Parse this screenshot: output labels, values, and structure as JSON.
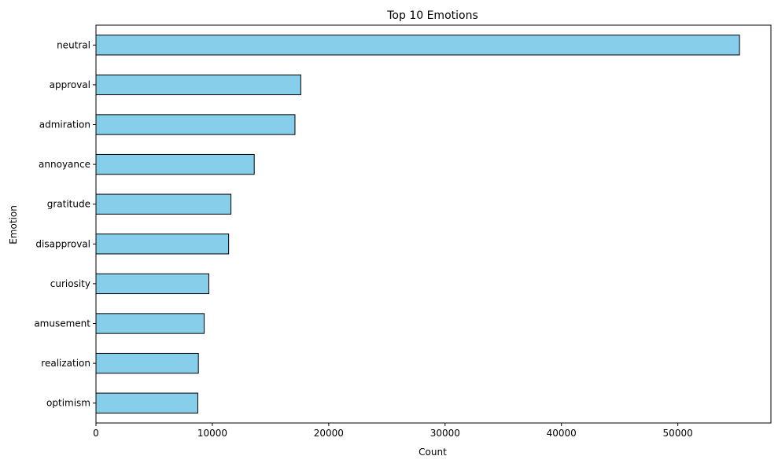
{
  "chart_data": {
    "type": "bar",
    "orientation": "horizontal",
    "title": "Top 10 Emotions",
    "xlabel": "Count",
    "ylabel": "Emotion",
    "categories": [
      "neutral",
      "approval",
      "admiration",
      "annoyance",
      "gratitude",
      "disapproval",
      "curiosity",
      "amusement",
      "realization",
      "optimism"
    ],
    "values": [
      55300,
      17600,
      17100,
      13600,
      11600,
      11400,
      9700,
      9300,
      8800,
      8750
    ],
    "xlim": [
      0,
      58000
    ],
    "xticks": [
      0,
      10000,
      20000,
      30000,
      40000,
      50000
    ],
    "xtick_labels": [
      "0",
      "10000",
      "20000",
      "30000",
      "40000",
      "50000"
    ],
    "grid": false,
    "legend": "none",
    "colors": {
      "bar_fill": "#87ceeb",
      "bar_edge": "#000000",
      "axis": "#000000",
      "background": "#ffffff"
    }
  }
}
